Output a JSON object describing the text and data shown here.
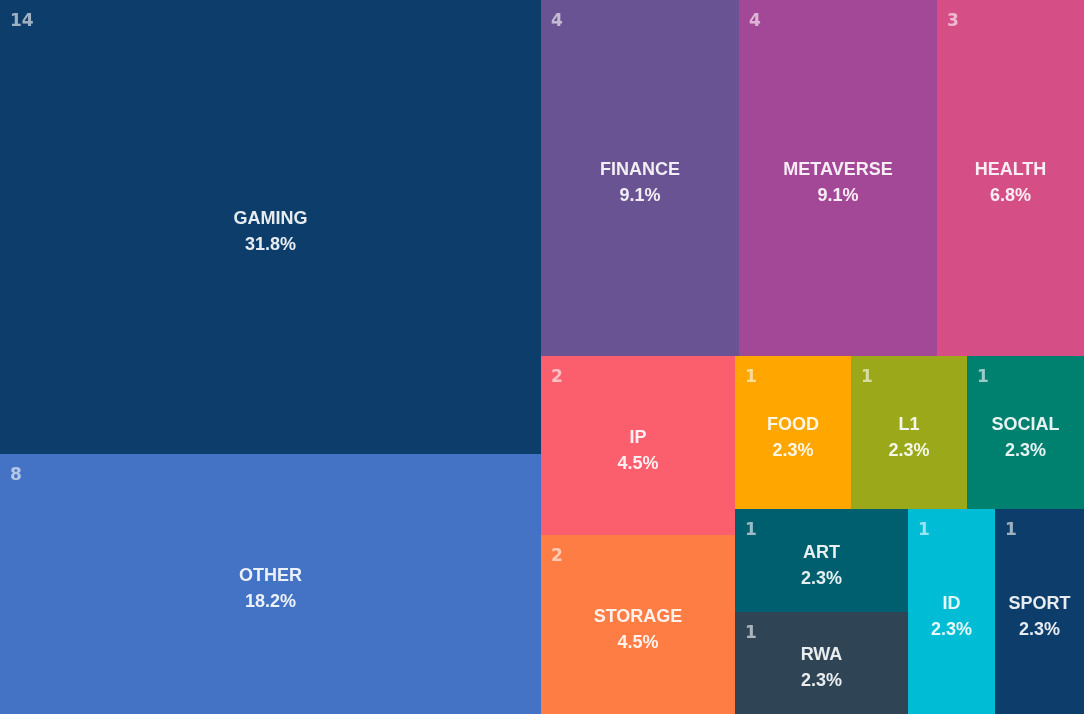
{
  "chart_data": {
    "type": "other",
    "categories": [
      "GAMING",
      "OTHER",
      "FINANCE",
      "METAVERSE",
      "HEALTH",
      "IP",
      "STORAGE",
      "FOOD",
      "L1",
      "SOCIAL",
      "ART",
      "RWA",
      "ID",
      "SPORT"
    ],
    "values": [
      31.8,
      18.2,
      9.1,
      9.1,
      6.8,
      4.5,
      4.5,
      2.3,
      2.3,
      2.3,
      2.3,
      2.3,
      2.3,
      2.3
    ],
    "value_labels": [
      "31.8%",
      "18.2%",
      "9.1%",
      "9.1%",
      "6.8%",
      "4.5%",
      "4.5%",
      "2.3%",
      "2.3%",
      "2.3%",
      "2.3%",
      "2.3%",
      "2.3%",
      "2.3%"
    ],
    "annotations": [
      "14",
      "8",
      "4",
      "4",
      "3",
      "2",
      "2",
      "1",
      "1",
      "1",
      "1",
      "1",
      "1",
      "1"
    ],
    "colors": [
      "#0d3d6b",
      "#4472c4",
      "#6a5392",
      "#a34896",
      "#d54f86",
      "#fb5f6d",
      "#fe7d45",
      "#ffa600",
      "#9aa81a",
      "#008170",
      "#005f6e",
      "#2f4556",
      "#00bcd4",
      "#0d3d6b"
    ]
  }
}
